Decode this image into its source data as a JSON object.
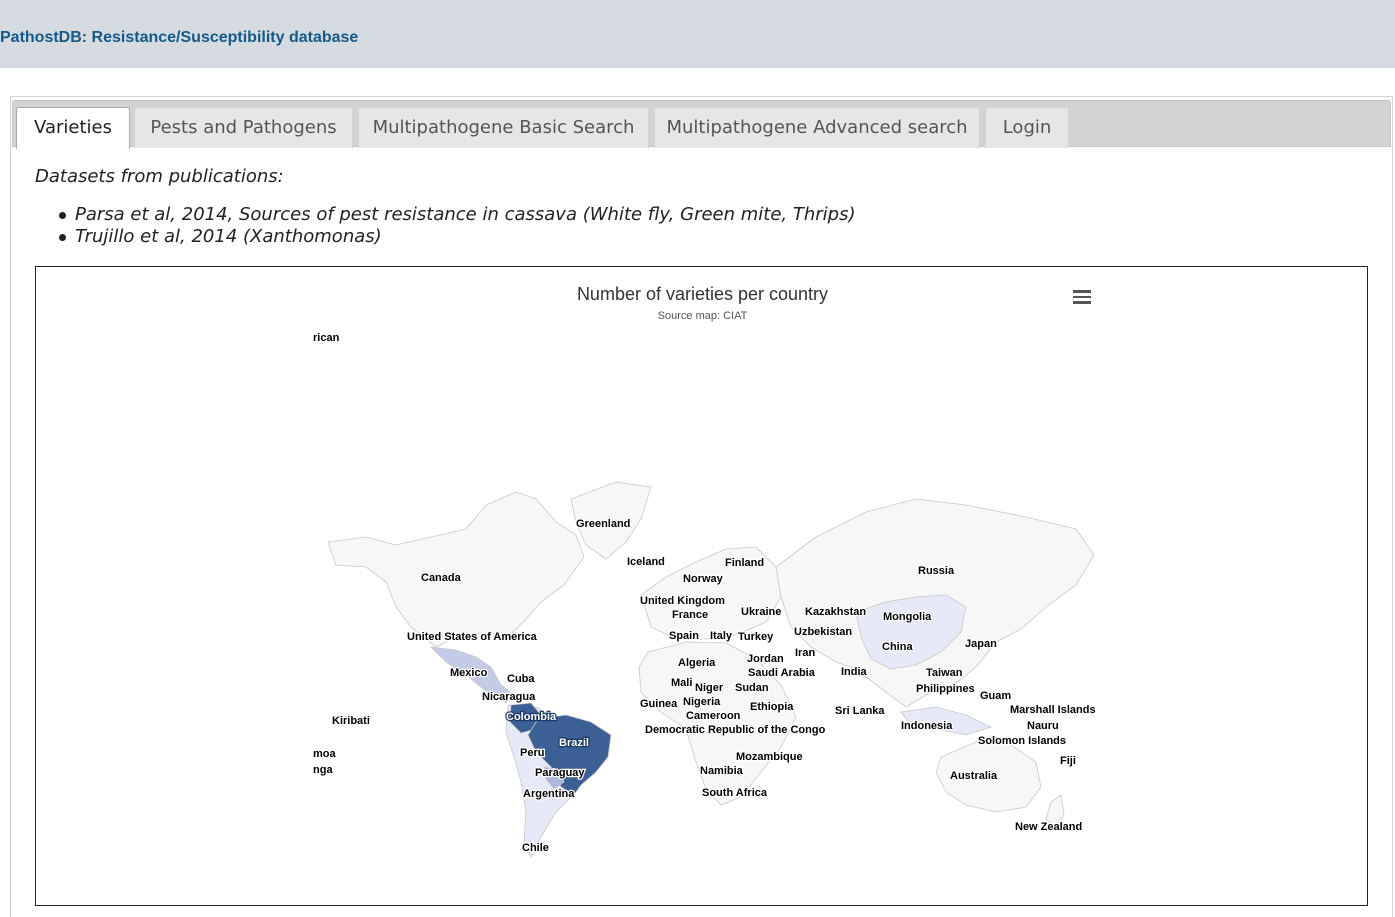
{
  "header": {
    "title": "PathostDB: Resistance/Susceptibility database"
  },
  "tabs": [
    {
      "label": "Varieties",
      "active": true
    },
    {
      "label": "Pests and Pathogens",
      "active": false
    },
    {
      "label": "Multipathogene Basic Search",
      "active": false
    },
    {
      "label": "Multipathogene Advanced search",
      "active": false
    },
    {
      "label": "Login",
      "active": false
    }
  ],
  "content": {
    "intro": "Datasets from publications:",
    "publications": [
      "Parsa et al, 2014, Sources of pest resistance in cassava (White fly, Green mite, Thrips)",
      "Trujillo et al, 2014 (Xanthomonas)"
    ]
  },
  "map": {
    "title": "Number of varieties per country",
    "subtitle": "Source map: CIAT",
    "menu_icon": "hamburger-menu-icon",
    "colors": {
      "land": "#f7f7f7",
      "border": "#c8c8c8",
      "light": "#e6e9f7",
      "medium": "#a9b7dc",
      "dark": "#3c5f96"
    },
    "clipped_labels": [
      "rican",
      "moa",
      "nga"
    ],
    "country_labels": [
      "Greenland",
      "Iceland",
      "Finland",
      "Russia",
      "Canada",
      "Norway",
      "United Kingdom",
      "France",
      "Ukraine",
      "Kazakhstan",
      "Mongolia",
      "Spain",
      "Italy",
      "Turkey",
      "Uzbekistan",
      "China",
      "Japan",
      "United States of America",
      "Iran",
      "Jordan",
      "Algeria",
      "Saudi Arabia",
      "India",
      "Taiwan",
      "Mexico",
      "Cuba",
      "Mali",
      "Niger",
      "Sudan",
      "Philippines",
      "Guam",
      "Nicaragua",
      "Guinea",
      "Nigeria",
      "Ethiopia",
      "Sri Lanka",
      "Marshall Islands",
      "Kiribati",
      "Colombia",
      "Cameroon",
      "Indonesia",
      "Nauru",
      "Democratic Republic of the Congo",
      "Solomon Islands",
      "Brazil",
      "Peru",
      "Mozambique",
      "Fiji",
      "Namibia",
      "Paraguay",
      "Australia",
      "South Africa",
      "Argentina",
      "New Zealand",
      "Chile"
    ]
  }
}
